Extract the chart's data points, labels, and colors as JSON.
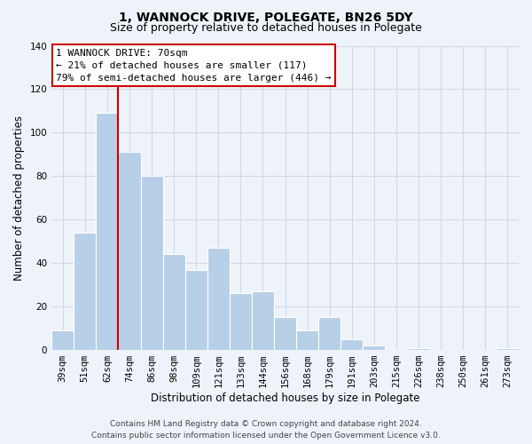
{
  "title": "1, WANNOCK DRIVE, POLEGATE, BN26 5DY",
  "subtitle": "Size of property relative to detached houses in Polegate",
  "xlabel": "Distribution of detached houses by size in Polegate",
  "ylabel": "Number of detached properties",
  "categories": [
    "39sqm",
    "51sqm",
    "62sqm",
    "74sqm",
    "86sqm",
    "98sqm",
    "109sqm",
    "121sqm",
    "133sqm",
    "144sqm",
    "156sqm",
    "168sqm",
    "179sqm",
    "191sqm",
    "203sqm",
    "215sqm",
    "226sqm",
    "238sqm",
    "250sqm",
    "261sqm",
    "273sqm"
  ],
  "values": [
    9,
    54,
    109,
    91,
    80,
    44,
    37,
    47,
    26,
    27,
    15,
    9,
    15,
    5,
    2,
    0,
    1,
    0,
    0,
    0,
    1
  ],
  "bar_color": "#b8cfe8",
  "bar_edge_color": "#ffffff",
  "reference_line_color": "#cc0000",
  "ylim": [
    0,
    140
  ],
  "yticks": [
    0,
    20,
    40,
    60,
    80,
    100,
    120,
    140
  ],
  "annotation_box_text": "1 WANNOCK DRIVE: 70sqm\n← 21% of detached houses are smaller (117)\n79% of semi-detached houses are larger (446) →",
  "annotation_box_color": "#ffffff",
  "annotation_box_edge_color": "#cc0000",
  "footer_line1": "Contains HM Land Registry data © Crown copyright and database right 2024.",
  "footer_line2": "Contains public sector information licensed under the Open Government Licence v3.0.",
  "background_color": "#eef3fa",
  "grid_color": "#d0d8e8",
  "title_fontsize": 10,
  "subtitle_fontsize": 9,
  "axis_label_fontsize": 8.5,
  "tick_fontsize": 7.5,
  "annotation_fontsize": 8,
  "footer_fontsize": 6.5
}
